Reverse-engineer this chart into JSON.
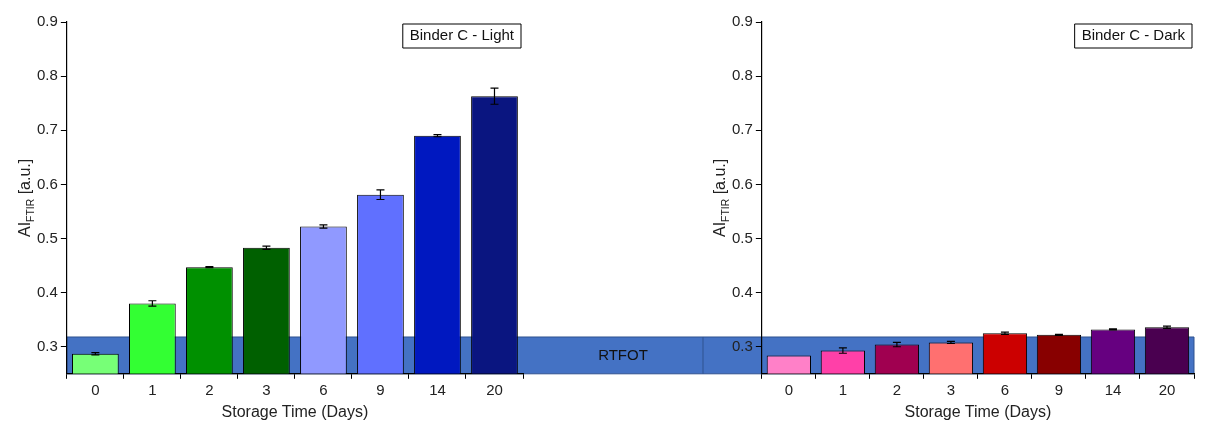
{
  "chart_data": [
    {
      "type": "bar",
      "annotations": [
        "Binder C - Light"
      ],
      "xlabel": "Storage Time (Days)",
      "ylabel": "AI$_{FTIR}$ [a.u.]",
      "categories": [
        "0",
        "1",
        "2",
        "3",
        "6",
        "9",
        "14",
        "20"
      ],
      "values": [
        0.287,
        0.38,
        0.447,
        0.483,
        0.522,
        0.581,
        0.69,
        0.763
      ],
      "errors": [
        0.002,
        0.005,
        0.001,
        0.003,
        0.003,
        0.009,
        0.002,
        0.015
      ],
      "colors": [
        "#77ff77",
        "#33ff33",
        "#009000",
        "#006000",
        "#9099ff",
        "#6070ff",
        "#0018c0",
        "#0a1580"
      ],
      "ylim": [
        0.25,
        0.9
      ],
      "yticks": [
        0.3,
        0.4,
        0.5,
        0.6,
        0.7,
        0.8,
        0.9
      ],
      "bands": [
        {
          "axis": "y",
          "from": 0.25,
          "to": 0.318,
          "label": "RTFOT",
          "color": "#4472c4"
        }
      ]
    },
    {
      "type": "bar",
      "annotations": [
        "Binder C - Dark"
      ],
      "xlabel": "Storage Time (Days)",
      "ylabel": "AI$_{FTIR}$ [a.u.]",
      "categories": [
        "0",
        "1",
        "2",
        "3",
        "6",
        "9",
        "14",
        "20"
      ],
      "values": [
        0.284,
        0.293,
        0.304,
        0.308,
        0.325,
        0.322,
        0.332,
        0.336
      ],
      "errors": [
        null,
        0.005,
        0.004,
        0.002,
        0.002,
        0.001,
        0.001,
        0.002
      ],
      "colors": [
        "#ff80c8",
        "#ff40a8",
        "#a00050",
        "#ff7070",
        "#cc0000",
        "#880000",
        "#660080",
        "#4a0050"
      ],
      "ylim": [
        0.25,
        0.9
      ],
      "yticks": [
        0.3,
        0.4,
        0.5,
        0.6,
        0.7,
        0.8,
        0.9
      ],
      "bands": [
        {
          "axis": "y",
          "from": 0.25,
          "to": 0.318,
          "color": "#4472c4"
        }
      ]
    }
  ]
}
